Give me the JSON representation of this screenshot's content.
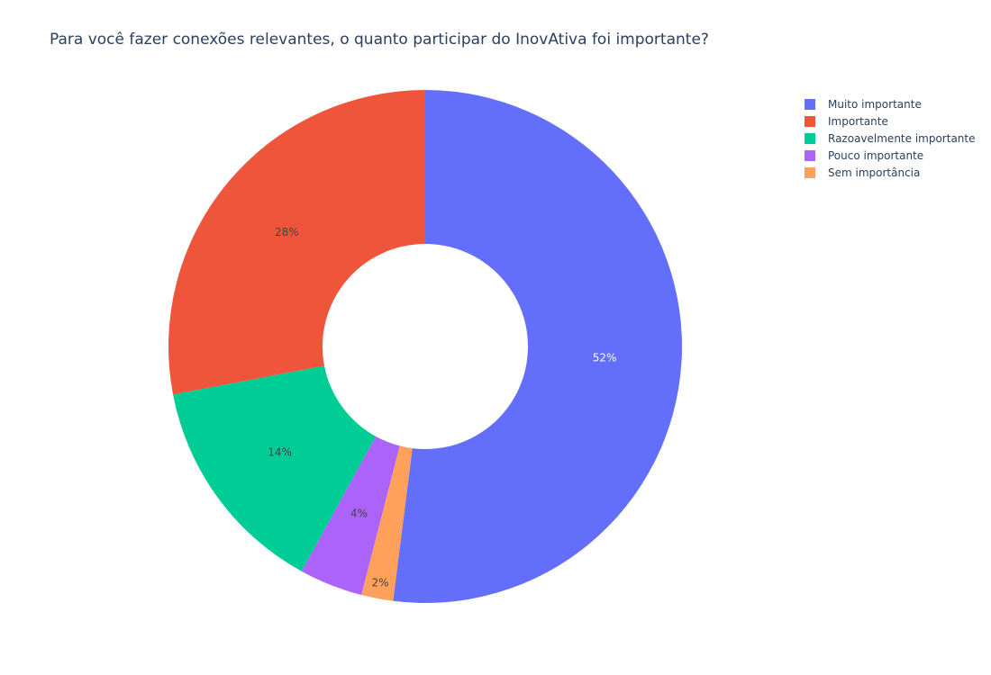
{
  "chart_data": {
    "type": "pie",
    "hole": true,
    "title": "Para você fazer conexões relevantes, o quanto participar do InovAtiva foi importante?",
    "legend_position": "top-right",
    "direction": "clockwise",
    "start_angle_deg": 0,
    "slices": [
      {
        "label": "Muito importante",
        "value": 52,
        "text": "52%",
        "color": "#636efa",
        "text_color": "#ffffff"
      },
      {
        "label": "Sem importância",
        "value": 2,
        "text": "2%",
        "color": "#ffa15a",
        "text_color": "#444444"
      },
      {
        "label": "Pouco importante",
        "value": 4,
        "text": "4%",
        "color": "#ab63fa",
        "text_color": "#444444"
      },
      {
        "label": "Razoavelmente importante",
        "value": 14,
        "text": "14%",
        "color": "#00cc96",
        "text_color": "#444444"
      },
      {
        "label": "Importante",
        "value": 28,
        "text": "28%",
        "color": "#ef553b",
        "text_color": "#444444"
      }
    ],
    "legend_order": [
      "Muito importante",
      "Importante",
      "Razoavelmente importante",
      "Pouco importante",
      "Sem importância"
    ]
  }
}
